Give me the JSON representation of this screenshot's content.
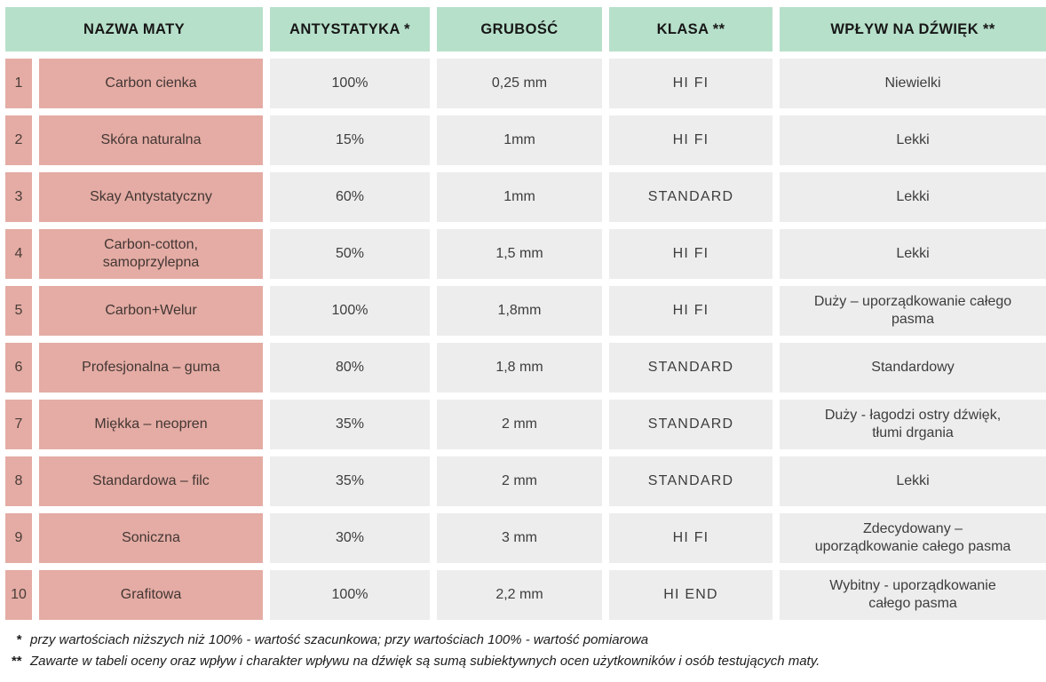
{
  "chart_data": {
    "type": "table",
    "columns": [
      "",
      "NAZWA MATY",
      "ANTYSTATYKA *",
      "GRUBOŚĆ",
      "KLASA **",
      "WPŁYW NA DŹWIĘK **"
    ],
    "rows": [
      [
        "1",
        "Carbon cienka",
        "100%",
        "0,25 mm",
        "HI FI",
        "Niewielki"
      ],
      [
        "2",
        "Skóra naturalna",
        "15%",
        "1mm",
        "HI FI",
        "Lekki"
      ],
      [
        "3",
        "Skay Antystatyczny",
        "60%",
        "1mm",
        "STANDARD",
        "Lekki"
      ],
      [
        "4",
        "Carbon-cotton,\nsamoprzylepna",
        "50%",
        "1,5 mm",
        "HI FI",
        "Lekki"
      ],
      [
        "5",
        "Carbon+Welur",
        "100%",
        "1,8mm",
        "HI FI",
        "Duży – uporządkowanie całego\npasma"
      ],
      [
        "6",
        "Profesjonalna – guma",
        "80%",
        "1,8 mm",
        "STANDARD",
        "Standardowy"
      ],
      [
        "7",
        "Miękka – neopren",
        "35%",
        "2 mm",
        "STANDARD",
        "Duży - łagodzi ostry dźwięk,\ntłumi drgania"
      ],
      [
        "8",
        "Standardowa – filc",
        "35%",
        "2 mm",
        "STANDARD",
        "Lekki"
      ],
      [
        "9",
        "Soniczna",
        "30%",
        "3 mm",
        "HI FI",
        "Zdecydowany –\nuporządkowanie całego pasma"
      ],
      [
        "10",
        "Grafitowa",
        "100%",
        "2,2 mm",
        "HI END",
        "Wybitny - uporządkowanie\ncałego pasma"
      ]
    ],
    "layout": "styled grid table, green headers, pink name cells, gray value cells"
  },
  "footnotes": [
    {
      "marker": "*",
      "text": "przy wartościach niższych niż 100% - wartość szacunkowa; przy wartościach 100% - wartość pomiarowa"
    },
    {
      "marker": "**",
      "text": "Zawarte w tabeli oceny oraz wpływ i charakter wpływu na dźwięk są sumą subiektywnych ocen użytkowników i osób testujących maty."
    }
  ],
  "colors": {
    "header_bg": "#b7e0ca",
    "name_bg": "#e4aca4",
    "value_bg": "#ededed",
    "text": "#3d3d3d"
  }
}
